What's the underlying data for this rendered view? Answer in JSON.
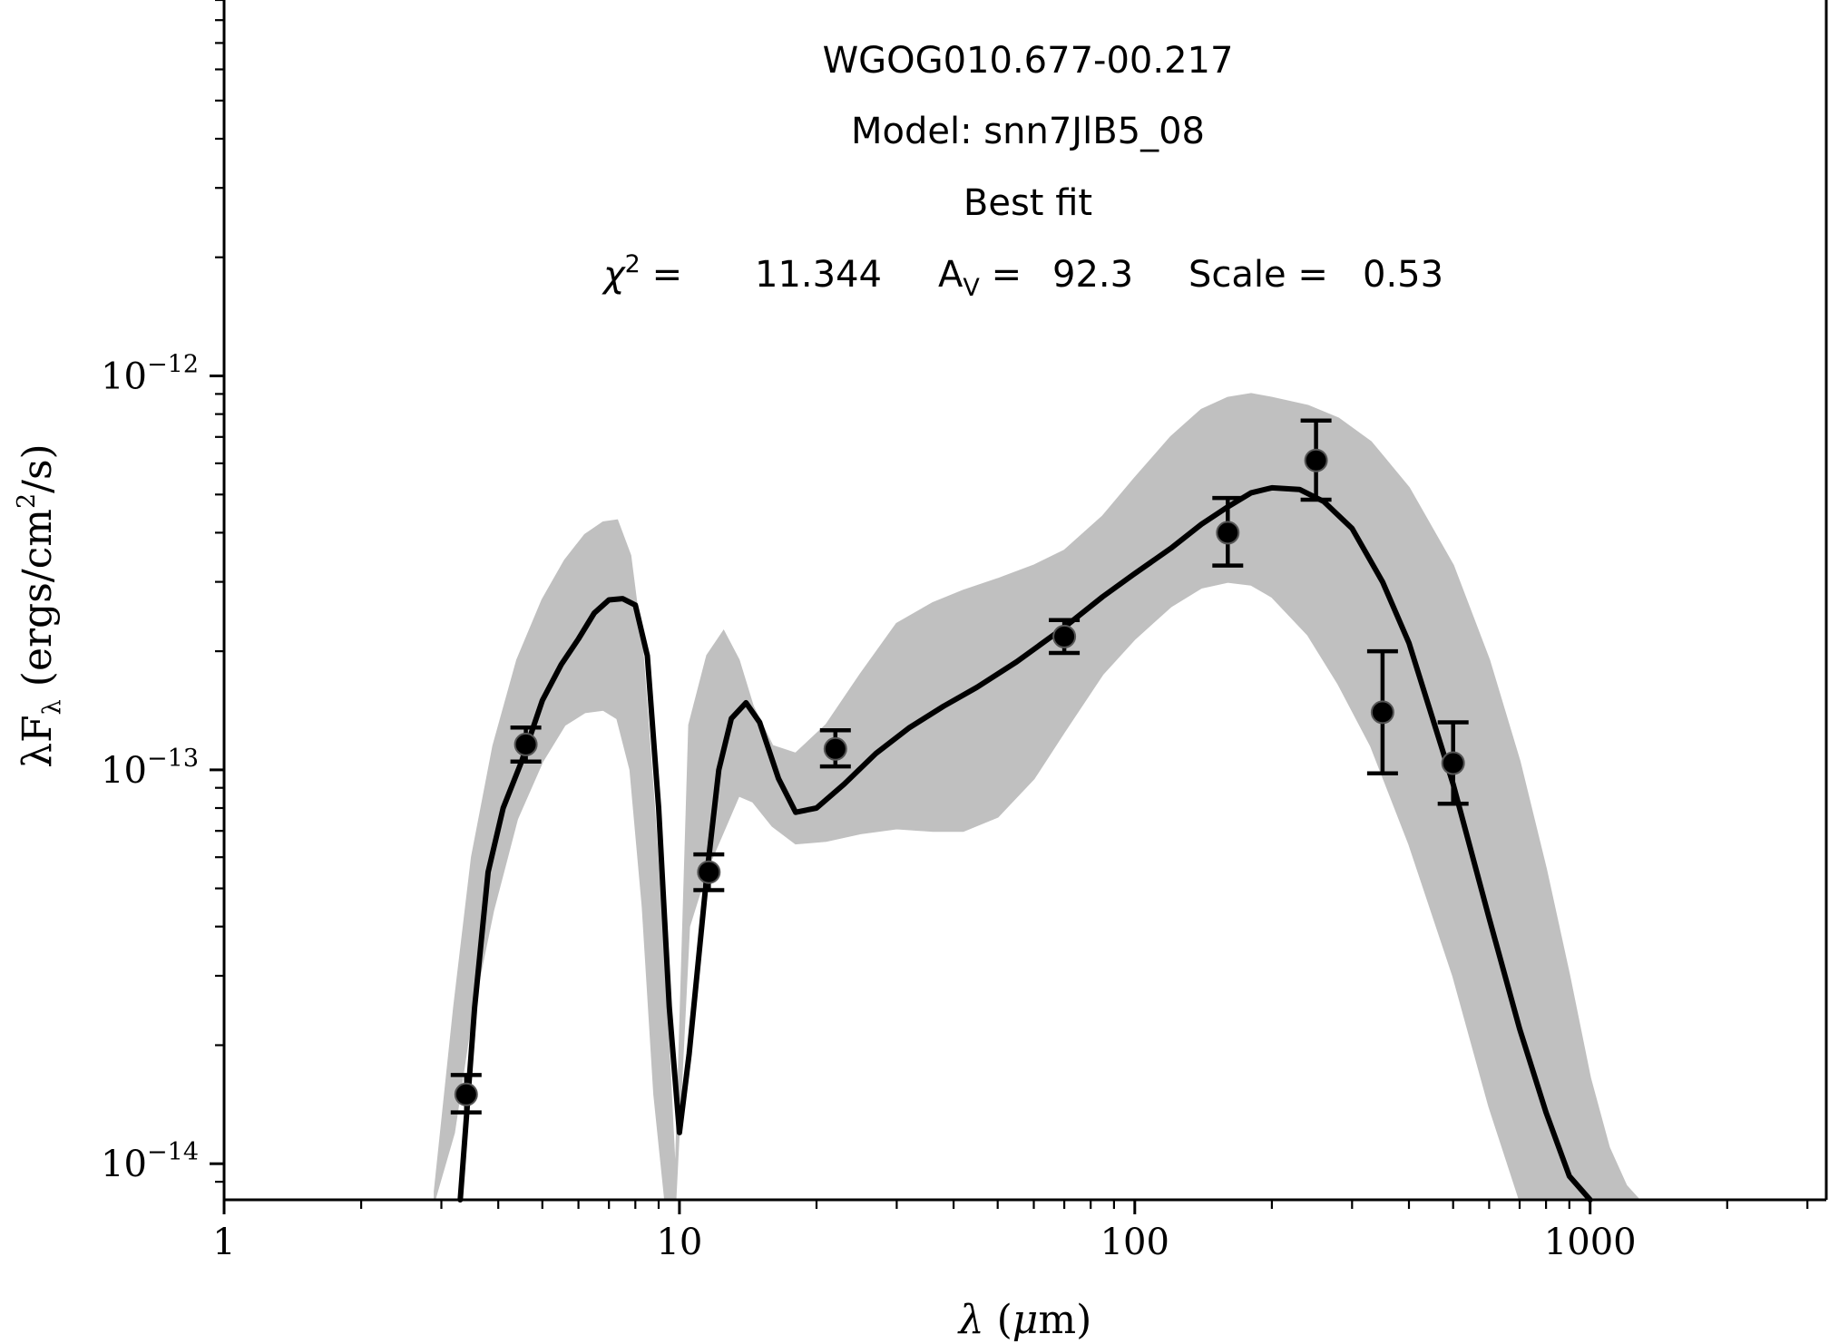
{
  "chart_data": {
    "type": "line",
    "title_lines": {
      "source": "WGOG010.677-00.217",
      "model": "Model: snn7JlB5_08",
      "fit": "Best fit"
    },
    "fit_stats": {
      "chi2_label": "χ",
      "chi2_sup": "2",
      "chi2_eq": " = ",
      "chi2_value": "11.344",
      "av_label": "A",
      "av_sub": "V",
      "av_eq": " = ",
      "av_value": "92.3",
      "scale_label": "Scale = ",
      "scale_value": "0.53"
    },
    "xlabel": {
      "sym": "λ",
      "open": " (",
      "mu": "μ",
      "unit": "m)"
    },
    "ylabel": {
      "prefix": "λF",
      "sub": "λ",
      "units": " (ergs/cm",
      "sup": "2",
      "tail": "/s)"
    },
    "x_scale": "log",
    "y_scale": "log",
    "xlim": [
      1,
      3300
    ],
    "ylim": [
      8.1e-15,
      9e-12
    ],
    "x_ticks": [
      {
        "value": 1,
        "label": "1"
      },
      {
        "value": 10,
        "label": "10"
      },
      {
        "value": 100,
        "label": "100"
      },
      {
        "value": 1000,
        "label": "1000"
      }
    ],
    "y_ticks": [
      {
        "value": 1e-14,
        "base": "10",
        "exp": "−14"
      },
      {
        "value": 1e-13,
        "base": "10",
        "exp": "−13"
      },
      {
        "value": 1e-12,
        "base": "10",
        "exp": "−12"
      }
    ],
    "grid": false,
    "colors": {
      "model_band": "#c0c0c0",
      "best_fit": "#000000",
      "points": "#000000",
      "axes": "#000000"
    },
    "model_band": {
      "x": [
        2.9,
        3.2,
        3.5,
        3.9,
        4.4,
        5.0,
        5.6,
        6.2,
        6.8,
        7.3,
        7.8,
        8.3,
        8.8,
        9.3,
        9.8,
        10.5,
        11.5,
        12.5,
        13.5,
        14.5,
        16,
        18,
        21,
        25,
        30,
        36,
        42,
        50,
        60,
        70,
        85,
        100,
        120,
        140,
        160,
        180,
        200,
        240,
        280,
        330,
        400,
        500,
        600,
        700,
        800,
        900,
        1000,
        1100,
        1200,
        1280
      ],
      "upper": [
        8.5e-15,
        2.5e-14,
        6e-14,
        1.15e-13,
        1.9e-13,
        2.7e-13,
        3.4e-13,
        3.95e-13,
        4.25e-13,
        4.3e-13,
        3.5e-13,
        2e-13,
        8e-14,
        3e-14,
        9e-15,
        1.3e-13,
        1.95e-13,
        2.25e-13,
        1.9e-13,
        1.45e-13,
        1.15e-13,
        1.1e-13,
        1.3e-13,
        1.75e-13,
        2.35e-13,
        2.65e-13,
        2.85e-13,
        3.05e-13,
        3.3e-13,
        3.6e-13,
        4.4e-13,
        5.5e-13,
        7e-13,
        8.2e-13,
        8.8e-13,
        9e-13,
        8.8e-13,
        8.4e-13,
        7.8e-13,
        6.8e-13,
        5.2e-13,
        3.3e-13,
        1.9e-13,
        1.05e-13,
        5.6e-14,
        3e-14,
        1.65e-14,
        1.1e-14,
        8.8e-15,
        8.1e-15
      ],
      "lower": [
        8.1e-15,
        1.2e-14,
        2.4e-14,
        4.4e-14,
        7.5e-14,
        1.05e-13,
        1.3e-13,
        1.4e-13,
        1.42e-13,
        1.35e-13,
        1e-13,
        4.5e-14,
        1.5e-14,
        8.1e-15,
        8.1e-15,
        4e-14,
        5.6e-14,
        7e-14,
        8.6e-14,
        8.3e-14,
        7.2e-14,
        6.5e-14,
        6.6e-14,
        6.9e-14,
        7.1e-14,
        7e-14,
        7e-14,
        7.6e-14,
        9.5e-14,
        1.25e-13,
        1.75e-13,
        2.15e-13,
        2.6e-13,
        2.9e-13,
        3e-13,
        2.95e-13,
        2.75e-13,
        2.2e-13,
        1.65e-13,
        1.15e-13,
        6.5e-14,
        3e-14,
        1.4e-14,
        8.1e-15,
        8.1e-15,
        8.1e-15,
        8.1e-15,
        8.1e-15,
        8.1e-15,
        8.1e-15
      ]
    },
    "best_fit": {
      "name": "Best fit",
      "x": [
        3.3,
        3.55,
        3.8,
        4.1,
        4.5,
        5.0,
        5.5,
        6.0,
        6.5,
        7.0,
        7.5,
        8.0,
        8.5,
        9.0,
        9.5,
        10.0,
        10.5,
        11.5,
        12.2,
        13.0,
        14.0,
        15.0,
        16.5,
        18.0,
        20,
        23,
        27,
        32,
        38,
        45,
        55,
        70,
        85,
        100,
        120,
        140,
        160,
        180,
        200,
        230,
        260,
        300,
        350,
        400,
        500,
        600,
        700,
        800,
        900,
        1000
      ],
      "y": [
        8.1e-15,
        2.5e-14,
        5.5e-14,
        8e-14,
        1.05e-13,
        1.5e-13,
        1.85e-13,
        2.15e-13,
        2.5e-13,
        2.7e-13,
        2.72e-13,
        2.62e-13,
        1.95e-13,
        8e-14,
        2.5e-14,
        1.2e-14,
        1.9e-14,
        5.5e-14,
        1e-13,
        1.35e-13,
        1.48e-13,
        1.32e-13,
        9.5e-14,
        7.8e-14,
        8e-14,
        9.2e-14,
        1.1e-13,
        1.28e-13,
        1.45e-13,
        1.62e-13,
        1.88e-13,
        2.3e-13,
        2.75e-13,
        3.15e-13,
        3.65e-13,
        4.2e-13,
        4.65e-13,
        5.05e-13,
        5.2e-13,
        5.15e-13,
        4.8e-13,
        4.1e-13,
        3e-13,
        2.1e-13,
        9.2e-14,
        4.2e-14,
        2.2e-14,
        1.35e-14,
        9.3e-15,
        8.1e-15
      ]
    },
    "points": [
      {
        "x": 3.4,
        "y": 1.5e-14,
        "ylo": 1.35e-14,
        "yhi": 1.68e-14
      },
      {
        "x": 4.6,
        "y": 1.16e-13,
        "ylo": 1.05e-13,
        "yhi": 1.28e-13
      },
      {
        "x": 11.6,
        "y": 5.5e-14,
        "ylo": 4.95e-14,
        "yhi": 6.1e-14
      },
      {
        "x": 22,
        "y": 1.13e-13,
        "ylo": 1.02e-13,
        "yhi": 1.26e-13
      },
      {
        "x": 70,
        "y": 2.18e-13,
        "ylo": 1.98e-13,
        "yhi": 2.4e-13
      },
      {
        "x": 160,
        "y": 4e-13,
        "ylo": 3.3e-13,
        "yhi": 4.9e-13
      },
      {
        "x": 250,
        "y": 6.1e-13,
        "ylo": 4.85e-13,
        "yhi": 7.7e-13
      },
      {
        "x": 350,
        "y": 1.4e-13,
        "ylo": 9.8e-14,
        "yhi": 2e-13
      },
      {
        "x": 500,
        "y": 1.04e-13,
        "ylo": 8.2e-14,
        "yhi": 1.32e-13
      }
    ]
  }
}
